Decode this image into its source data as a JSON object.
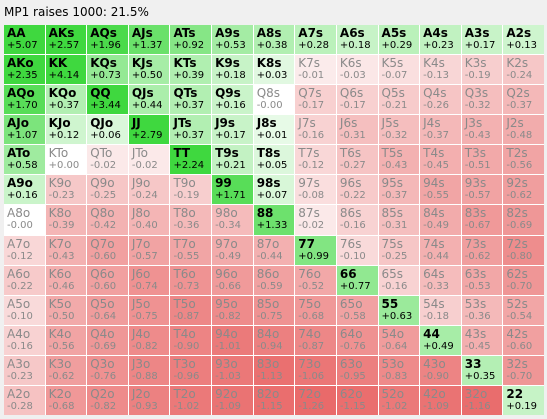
{
  "header": {
    "title": "MP1 raises 1000: 21.5%"
  },
  "matrix": {
    "rows": [
      [
        [
          "AA",
          "+5.07"
        ],
        [
          "AKs",
          "+2.57"
        ],
        [
          "AQs",
          "+1.96"
        ],
        [
          "AJs",
          "+1.37"
        ],
        [
          "ATs",
          "+0.92"
        ],
        [
          "A9s",
          "+0.53"
        ],
        [
          "A8s",
          "+0.38"
        ],
        [
          "A7s",
          "+0.28"
        ],
        [
          "A6s",
          "+0.18"
        ],
        [
          "A5s",
          "+0.29"
        ],
        [
          "A4s",
          "+0.23"
        ],
        [
          "A3s",
          "+0.17"
        ],
        [
          "A2s",
          "+0.13"
        ]
      ],
      [
        [
          "AKo",
          "+2.35"
        ],
        [
          "KK",
          "+4.14"
        ],
        [
          "KQs",
          "+0.73"
        ],
        [
          "KJs",
          "+0.50"
        ],
        [
          "KTs",
          "+0.39"
        ],
        [
          "K9s",
          "+0.18"
        ],
        [
          "K8s",
          "+0.03"
        ],
        [
          "K7s",
          "-0.01"
        ],
        [
          "K6s",
          "-0.03"
        ],
        [
          "K5s",
          "-0.07"
        ],
        [
          "K4s",
          "-0.13"
        ],
        [
          "K3s",
          "-0.19"
        ],
        [
          "K2s",
          "-0.24"
        ]
      ],
      [
        [
          "AQo",
          "+1.70"
        ],
        [
          "KQo",
          "+0.37"
        ],
        [
          "QQ",
          "+3.44"
        ],
        [
          "QJs",
          "+0.44"
        ],
        [
          "QTs",
          "+0.37"
        ],
        [
          "Q9s",
          "+0.16"
        ],
        [
          "Q8s",
          "-0.00"
        ],
        [
          "Q7s",
          "-0.17"
        ],
        [
          "Q6s",
          "-0.17"
        ],
        [
          "Q5s",
          "-0.21"
        ],
        [
          "Q4s",
          "-0.26"
        ],
        [
          "Q3s",
          "-0.32"
        ],
        [
          "Q2s",
          "-0.37"
        ]
      ],
      [
        [
          "AJo",
          "+1.07"
        ],
        [
          "KJo",
          "+0.12"
        ],
        [
          "QJo",
          "+0.06"
        ],
        [
          "JJ",
          "+2.79"
        ],
        [
          "JTs",
          "+0.37"
        ],
        [
          "J9s",
          "+0.17"
        ],
        [
          "J8s",
          "+0.01"
        ],
        [
          "J7s",
          "-0.16"
        ],
        [
          "J6s",
          "-0.31"
        ],
        [
          "J5s",
          "-0.32"
        ],
        [
          "J4s",
          "-0.37"
        ],
        [
          "J3s",
          "-0.43"
        ],
        [
          "J2s",
          "-0.48"
        ]
      ],
      [
        [
          "ATo",
          "+0.58"
        ],
        [
          "KTo",
          "+0.00"
        ],
        [
          "QTo",
          "-0.02"
        ],
        [
          "JTo",
          "-0.02"
        ],
        [
          "TT",
          "+2.24"
        ],
        [
          "T9s",
          "+0.21"
        ],
        [
          "T8s",
          "+0.05"
        ],
        [
          "T7s",
          "-0.12"
        ],
        [
          "T6s",
          "-0.27"
        ],
        [
          "T5s",
          "-0.43"
        ],
        [
          "T4s",
          "-0.45"
        ],
        [
          "T3s",
          "-0.51"
        ],
        [
          "T2s",
          "-0.56"
        ]
      ],
      [
        [
          "A9o",
          "+0.16"
        ],
        [
          "K9o",
          "-0.23"
        ],
        [
          "Q9o",
          "-0.25"
        ],
        [
          "J9o",
          "-0.24"
        ],
        [
          "T9o",
          "-0.19"
        ],
        [
          "99",
          "+1.71"
        ],
        [
          "98s",
          "+0.07"
        ],
        [
          "97s",
          "-0.08"
        ],
        [
          "96s",
          "-0.22"
        ],
        [
          "95s",
          "-0.37"
        ],
        [
          "94s",
          "-0.55"
        ],
        [
          "93s",
          "-0.57"
        ],
        [
          "92s",
          "-0.62"
        ]
      ],
      [
        [
          "A8o",
          "-0.00"
        ],
        [
          "K8o",
          "-0.39"
        ],
        [
          "Q8o",
          "-0.42"
        ],
        [
          "J8o",
          "-0.40"
        ],
        [
          "T8o",
          "-0.36"
        ],
        [
          "98o",
          "-0.34"
        ],
        [
          "88",
          "+1.33"
        ],
        [
          "87s",
          "-0.02"
        ],
        [
          "86s",
          "-0.16"
        ],
        [
          "85s",
          "-0.31"
        ],
        [
          "84s",
          "-0.49"
        ],
        [
          "83s",
          "-0.67"
        ],
        [
          "82s",
          "-0.69"
        ]
      ],
      [
        [
          "A7o",
          "-0.12"
        ],
        [
          "K7o",
          "-0.43"
        ],
        [
          "Q7o",
          "-0.60"
        ],
        [
          "J7o",
          "-0.57"
        ],
        [
          "T7o",
          "-0.55"
        ],
        [
          "97o",
          "-0.49"
        ],
        [
          "87o",
          "-0.44"
        ],
        [
          "77",
          "+0.99"
        ],
        [
          "76s",
          "-0.10"
        ],
        [
          "75s",
          "-0.25"
        ],
        [
          "74s",
          "-0.44"
        ],
        [
          "73s",
          "-0.62"
        ],
        [
          "72s",
          "-0.80"
        ]
      ],
      [
        [
          "A6o",
          "-0.22"
        ],
        [
          "K6o",
          "-0.46"
        ],
        [
          "Q6o",
          "-0.60"
        ],
        [
          "J6o",
          "-0.74"
        ],
        [
          "T6o",
          "-0.73"
        ],
        [
          "96o",
          "-0.66"
        ],
        [
          "86o",
          "-0.59"
        ],
        [
          "76o",
          "-0.52"
        ],
        [
          "66",
          "+0.77"
        ],
        [
          "65s",
          "-0.16"
        ],
        [
          "64s",
          "-0.33"
        ],
        [
          "63s",
          "-0.53"
        ],
        [
          "62s",
          "-0.70"
        ]
      ],
      [
        [
          "A5o",
          "-0.10"
        ],
        [
          "K5o",
          "-0.50"
        ],
        [
          "Q5o",
          "-0.64"
        ],
        [
          "J5o",
          "-0.75"
        ],
        [
          "T5o",
          "-0.87"
        ],
        [
          "95o",
          "-0.82"
        ],
        [
          "85o",
          "-0.75"
        ],
        [
          "75o",
          "-0.68"
        ],
        [
          "65o",
          "-0.58"
        ],
        [
          "55",
          "+0.63"
        ],
        [
          "54s",
          "-0.18"
        ],
        [
          "53s",
          "-0.36"
        ],
        [
          "52s",
          "-0.54"
        ]
      ],
      [
        [
          "A4o",
          "-0.16"
        ],
        [
          "K4o",
          "-0.56"
        ],
        [
          "Q4o",
          "-0.69"
        ],
        [
          "J4o",
          "-0.82"
        ],
        [
          "T4o",
          "-0.90"
        ],
        [
          "94o",
          "-1.01"
        ],
        [
          "84o",
          "-0.94"
        ],
        [
          "74o",
          "-0.87"
        ],
        [
          "64o",
          "-0.76"
        ],
        [
          "54o",
          "-0.64"
        ],
        [
          "44",
          "+0.49"
        ],
        [
          "43s",
          "-0.45"
        ],
        [
          "42s",
          "-0.60"
        ]
      ],
      [
        [
          "A3o",
          "-0.23"
        ],
        [
          "K3o",
          "-0.62"
        ],
        [
          "Q3o",
          "-0.76"
        ],
        [
          "J3o",
          "-0.88"
        ],
        [
          "T3o",
          "-0.96"
        ],
        [
          "93o",
          "-1.03"
        ],
        [
          "83o",
          "-1.13"
        ],
        [
          "73o",
          "-1.06"
        ],
        [
          "63o",
          "-0.95"
        ],
        [
          "53o",
          "-0.83"
        ],
        [
          "43o",
          "-0.90"
        ],
        [
          "33",
          "+0.35"
        ],
        [
          "32s",
          "-0.70"
        ]
      ],
      [
        [
          "A2o",
          "-0.28"
        ],
        [
          "K2o",
          "-0.68"
        ],
        [
          "Q2o",
          "-0.82"
        ],
        [
          "J2o",
          "-0.93"
        ],
        [
          "T2o",
          "-1.02"
        ],
        [
          "92o",
          "-1.09"
        ],
        [
          "82o",
          "-1.15"
        ],
        [
          "72o",
          "-1.26"
        ],
        [
          "62o",
          "-1.15"
        ],
        [
          "52o",
          "-1.02"
        ],
        [
          "42o",
          "-1.09"
        ],
        [
          "32o",
          "-1.16"
        ],
        [
          "22",
          "+0.19"
        ]
      ]
    ]
  },
  "colors": {
    "positive_max": "#3fd83f",
    "positive_min": "#eefbee",
    "negative_max": "#e96a6a",
    "negative_min": "#fcefef",
    "neutral": "#ffffff"
  }
}
